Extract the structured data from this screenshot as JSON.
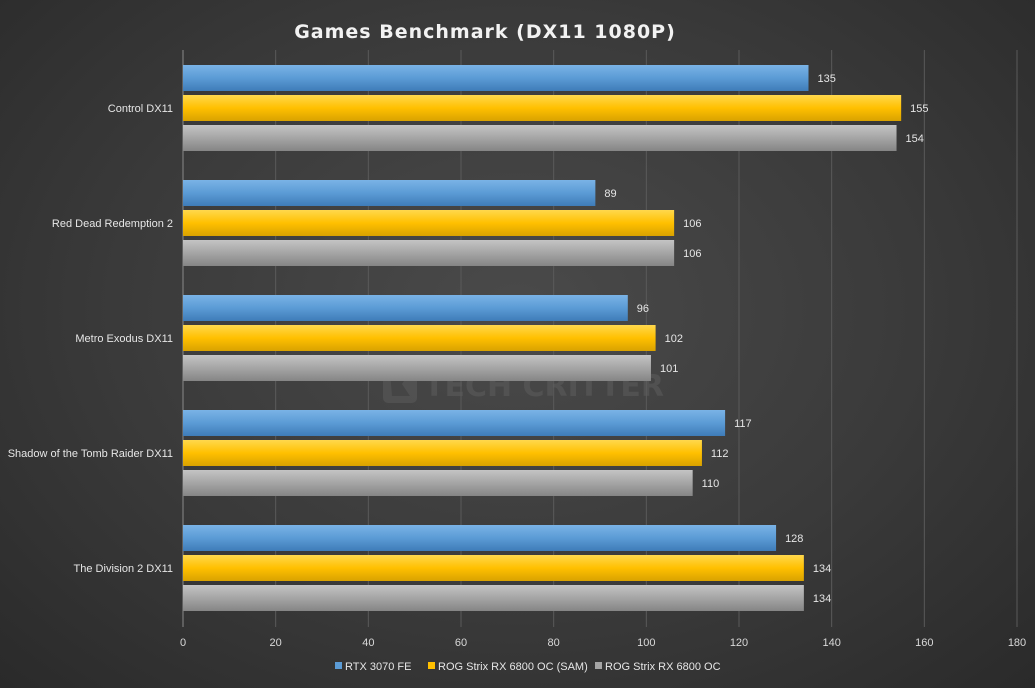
{
  "chart_data": {
    "type": "bar",
    "orientation": "horizontal",
    "title": "Games Benchmark (DX11 1080P)",
    "categories": [
      "Control DX11",
      "Red Dead Redemption 2",
      "Metro Exodus DX11",
      "Shadow of the Tomb Raider DX11",
      "The Division 2 DX11"
    ],
    "series": [
      {
        "name": "RTX 3070 FE",
        "color": "#5b9bd5",
        "values": [
          135,
          89,
          96,
          117,
          128
        ]
      },
      {
        "name": "ROG Strix RX 6800 OC (SAM)",
        "color": "#ffc000",
        "values": [
          155,
          106,
          102,
          112,
          134
        ]
      },
      {
        "name": "ROG Strix RX 6800 OC",
        "color": "#a5a5a5",
        "values": [
          154,
          106,
          101,
          110,
          134
        ]
      }
    ],
    "xlim": [
      0,
      180
    ],
    "xticks": [
      0,
      20,
      40,
      60,
      80,
      100,
      120,
      140,
      160,
      180
    ],
    "grid": true,
    "legend_position": "bottom"
  },
  "watermark": {
    "text": "TECH CRITTER",
    "icon": "critter-logo-icon"
  }
}
